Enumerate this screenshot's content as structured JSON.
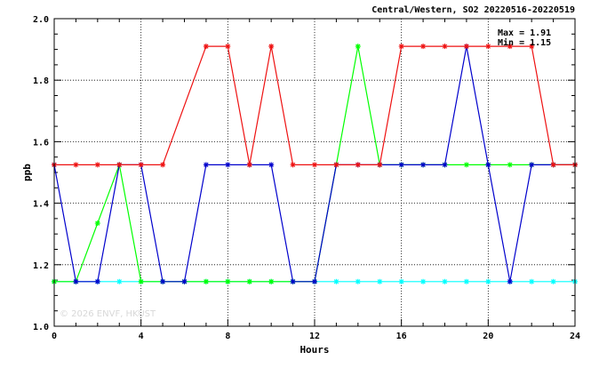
{
  "chart_data": {
    "type": "line",
    "title": "Central/Western, SO2 20220516-20220519",
    "xlabel": "Hours",
    "ylabel": "ppb",
    "xlim": [
      0,
      24
    ],
    "ylim": [
      1.0,
      2.0
    ],
    "x_ticks": [
      "0",
      "4",
      "8",
      "12",
      "16",
      "20",
      "24"
    ],
    "y_ticks": [
      "1.0",
      "1.2",
      "1.4",
      "1.6",
      "1.8",
      "2.0"
    ],
    "grid": "dotted",
    "stats": {
      "max": "Max = 1.91",
      "min": "Min = 1.15"
    },
    "watermark": "© 2026  ENVF, HKUST",
    "series": [
      {
        "color": "#00ffff",
        "x": [
          0,
          1,
          2,
          3,
          4,
          5,
          6,
          7,
          8,
          9,
          10,
          11,
          12,
          13,
          14,
          15,
          16,
          17,
          18,
          19,
          20,
          21,
          22,
          23,
          24
        ],
        "values": [
          1.145,
          1.145,
          1.145,
          1.145,
          1.145,
          1.145,
          1.145,
          1.145,
          1.145,
          1.145,
          1.145,
          1.145,
          1.145,
          1.145,
          1.145,
          1.145,
          1.145,
          1.145,
          1.145,
          1.145,
          1.145,
          1.145,
          1.145,
          1.145,
          1.145
        ]
      },
      {
        "color": "#00ff00",
        "x": [
          0,
          1,
          2,
          3,
          4,
          5,
          6,
          7,
          8,
          9,
          10,
          11,
          12,
          13,
          14,
          15,
          16,
          17,
          18,
          19,
          20,
          21,
          22,
          23,
          24
        ],
        "values": [
          1.145,
          1.145,
          1.335,
          1.525,
          1.145,
          1.145,
          1.145,
          1.145,
          1.145,
          1.145,
          1.145,
          1.145,
          1.145,
          1.525,
          1.91,
          1.525,
          1.525,
          1.525,
          1.525,
          1.525,
          1.525,
          1.525,
          1.525,
          1.525,
          1.525
        ]
      },
      {
        "color": "#0000cc",
        "x": [
          0,
          1,
          2,
          3,
          4,
          5,
          6,
          7,
          8,
          9,
          10,
          11,
          12,
          13,
          14,
          15,
          16,
          17,
          18,
          19,
          20,
          21,
          22,
          23,
          24
        ],
        "values": [
          1.525,
          1.145,
          1.145,
          1.525,
          1.525,
          1.145,
          1.145,
          1.525,
          1.525,
          1.525,
          1.525,
          1.145,
          1.145,
          1.525,
          1.525,
          1.525,
          1.525,
          1.525,
          1.525,
          1.91,
          1.525,
          1.145,
          1.525,
          1.525,
          1.525
        ]
      },
      {
        "color": "#ee1111",
        "x": [
          0,
          1,
          2,
          3,
          4,
          5,
          7,
          8,
          9,
          10,
          11,
          12,
          13,
          14,
          15,
          16,
          17,
          18,
          19,
          20,
          21,
          22,
          23,
          24
        ],
        "values": [
          1.525,
          1.525,
          1.525,
          1.525,
          1.525,
          1.525,
          1.91,
          1.91,
          1.525,
          1.91,
          1.525,
          1.525,
          1.525,
          1.525,
          1.525,
          1.91,
          1.91,
          1.91,
          1.91,
          1.91,
          1.91,
          1.91,
          1.525,
          1.525
        ]
      }
    ]
  }
}
